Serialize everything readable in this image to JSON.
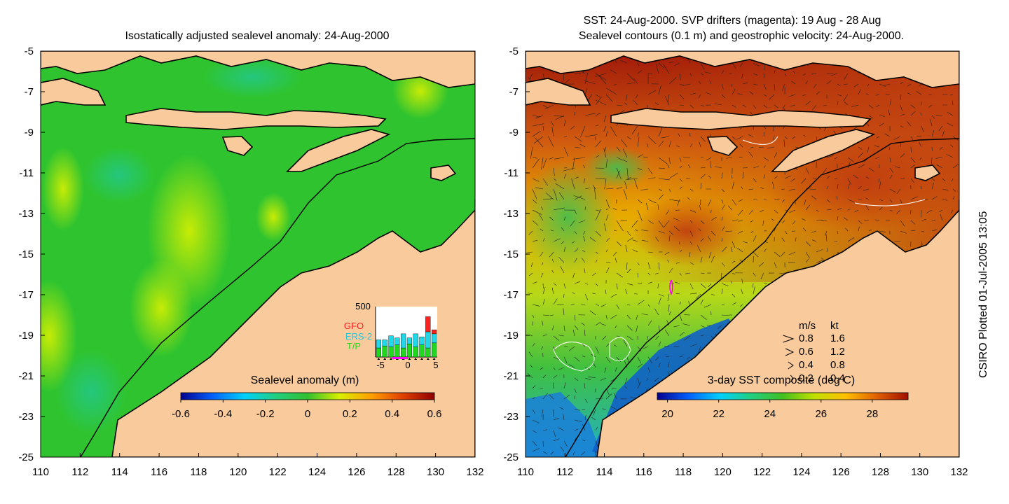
{
  "colors": {
    "land": "#f9cb9c",
    "ocean_green": "#2fc42f",
    "coast": "#000000",
    "gfo": "#ff2020",
    "ers2": "#20d8e8",
    "tp": "#20d820",
    "drifter": "#ff00ff"
  },
  "left_panel": {
    "title": "Isostatically adjusted sealevel anomaly: 24-Aug-2000",
    "colorbar_label": "Sealevel anomaly (m)",
    "colorbar_ticks": [
      "-0.6",
      "-0.4",
      "-0.2",
      "0",
      "0.2",
      "0.4",
      "0.6"
    ],
    "colorbar_range": [
      -0.6,
      0.6
    ],
    "colorbar_colors": [
      "#00008f",
      "#0060ff",
      "#00d0ff",
      "#20d080",
      "#30c030",
      "#d8f000",
      "#ffa000",
      "#e04000",
      "#8f0000"
    ],
    "inset": {
      "ymax_label": "500",
      "legend": [
        "GFO",
        "ERS-2",
        "T/P"
      ],
      "x_ticks": [
        "-5",
        "0",
        "5"
      ],
      "days": [
        -5,
        -4,
        -3,
        -2,
        -1,
        0,
        1,
        2,
        3,
        4
      ],
      "series": [
        {
          "name": "T/P",
          "values": [
            90,
            110,
            100,
            120,
            90,
            130,
            100,
            120,
            90,
            140
          ]
        },
        {
          "name": "ERS-2",
          "values": [
            80,
            60,
            110,
            70,
            140,
            60,
            130,
            80,
            160,
            90
          ]
        },
        {
          "name": "GFO",
          "values": [
            0,
            0,
            0,
            0,
            0,
            0,
            0,
            0,
            150,
            40
          ]
        }
      ],
      "ymax": 500
    }
  },
  "right_panel": {
    "title_line1": "SST: 24-Aug-2000. SVP drifters (magenta): 19 Aug - 28 Aug",
    "title_line2": "Sealevel contours (0.1 m) and geostrophic velocity: 24-Aug-2000.",
    "colorbar_label": "3-day SST composite (deg C)",
    "colorbar_ticks": [
      "20",
      "22",
      "24",
      "26",
      "28"
    ],
    "colorbar_range": [
      19.6,
      29.4
    ],
    "colorbar_colors": [
      "#00008f",
      "#0060ff",
      "#00d0ff",
      "#20d080",
      "#40c020",
      "#c0e000",
      "#ffc000",
      "#e06000",
      "#a01000"
    ],
    "speed_key": {
      "header_ms": "m/s",
      "header_kt": "kt",
      "rows": [
        {
          "ms": "0.8",
          "kt": "1.6"
        },
        {
          "ms": "0.6",
          "kt": "1.2"
        },
        {
          "ms": "0.4",
          "kt": "0.8"
        },
        {
          "ms": "0.2",
          "kt": "0.4"
        }
      ]
    }
  },
  "axes": {
    "lon_ticks": [
      "110",
      "112",
      "114",
      "116",
      "118",
      "120",
      "122",
      "124",
      "126",
      "128",
      "130",
      "132"
    ],
    "lat_ticks": [
      "-5",
      "-7",
      "-9",
      "-11",
      "-13",
      "-15",
      "-17",
      "-19",
      "-21",
      "-23",
      "-25"
    ],
    "lon_range": [
      110,
      132
    ],
    "lat_range": [
      -25,
      -5
    ]
  },
  "credit": "CSIRO Plotted 01-Jul-2005 13:05"
}
